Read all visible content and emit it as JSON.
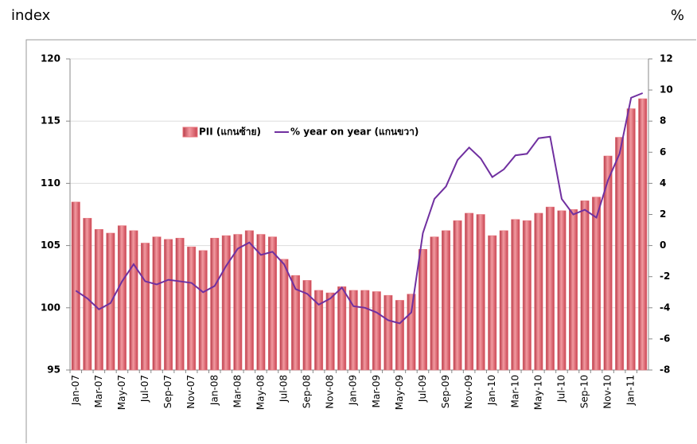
{
  "chart_data": {
    "type": "bar-line",
    "y_label": "index",
    "y2_label": "%",
    "categories": [
      "Jan-07",
      null,
      "Mar-07",
      null,
      "May-07",
      null,
      "Jul-07",
      null,
      "Sep-07",
      null,
      "Nov-07",
      null,
      "Jan-08",
      null,
      "Mar-08",
      null,
      "May-08",
      null,
      "Jul-08",
      null,
      "Sep-08",
      null,
      "Nov-08",
      null,
      "Jan-09",
      null,
      "Mar-09",
      null,
      "May-09",
      null,
      "Jul-09",
      null,
      "Sep-09",
      null,
      "Nov-09",
      null,
      "Jan-10",
      null,
      "Mar-10",
      null,
      "May-10",
      null,
      "Jul-10",
      null,
      "Sep-10",
      null,
      "Nov-10",
      null,
      "Jan-11",
      null
    ],
    "series": [
      {
        "name": "PII (แกนซ้าย)",
        "type": "bar",
        "color": "#e8747c",
        "values": [
          108.5,
          107.2,
          106.3,
          106.0,
          106.6,
          106.2,
          105.2,
          105.7,
          105.5,
          105.6,
          104.9,
          104.6,
          105.6,
          105.8,
          105.9,
          106.2,
          105.9,
          105.7,
          103.9,
          102.6,
          102.2,
          101.4,
          101.2,
          101.7,
          101.4,
          101.4,
          101.3,
          101.0,
          100.6,
          101.1,
          104.7,
          105.7,
          106.2,
          107.0,
          107.6,
          107.5,
          105.8,
          106.2,
          107.1,
          107.0,
          107.6,
          108.1,
          107.8,
          107.9,
          108.6,
          108.9,
          112.2,
          113.7,
          116.0,
          116.8
        ]
      },
      {
        "name": "% year on year (แกนขวา)",
        "type": "line",
        "axis": "y2",
        "color": "#7030a0",
        "values": [
          -2.9,
          -3.4,
          -4.1,
          -3.7,
          -2.3,
          -1.2,
          -2.3,
          -2.5,
          -2.2,
          -2.3,
          -2.4,
          -3.0,
          -2.6,
          -1.3,
          -0.2,
          0.2,
          -0.6,
          -0.4,
          -1.2,
          -2.8,
          -3.1,
          -3.8,
          -3.4,
          -2.7,
          -3.9,
          -4.0,
          -4.3,
          -4.8,
          -5.0,
          -4.3,
          0.8,
          3.0,
          3.8,
          5.5,
          6.3,
          5.6,
          4.4,
          4.9,
          5.8,
          5.9,
          6.9,
          7.0,
          3.0,
          2.0,
          2.3,
          1.8,
          4.2,
          5.9,
          9.5,
          9.8
        ]
      }
    ],
    "ylim": [
      95,
      120
    ],
    "yticks": [
      95,
      100,
      105,
      110,
      115,
      120
    ],
    "y2lim": [
      -8,
      12
    ],
    "y2ticks": [
      -8,
      -6,
      -4,
      -2,
      0,
      2,
      4,
      6,
      8,
      10,
      12
    ],
    "grid": true,
    "legend": "top"
  }
}
